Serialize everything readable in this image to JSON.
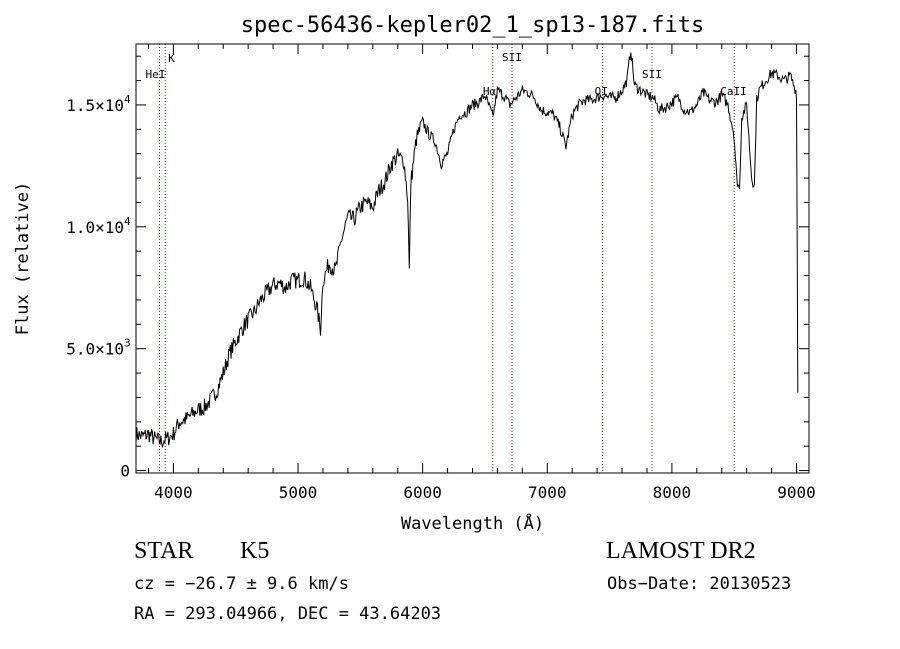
{
  "chart_data": {
    "type": "line",
    "title": "spec-56436-kepler02_1_sp13-187.fits",
    "xlabel": "Wavelength (Å)",
    "ylabel": "Flux (relative)",
    "xlim": [
      3700,
      9100
    ],
    "ylim": [
      -100,
      17500
    ],
    "grid": false,
    "x_ticks": [
      {
        "value": 4000,
        "label": "4000"
      },
      {
        "value": 5000,
        "label": "5000"
      },
      {
        "value": 6000,
        "label": "6000"
      },
      {
        "value": 7000,
        "label": "7000"
      },
      {
        "value": 8000,
        "label": "8000"
      },
      {
        "value": 9000,
        "label": "9000"
      }
    ],
    "y_ticks": [
      {
        "value": 0,
        "mant": "0",
        "exp": ""
      },
      {
        "value": 5000,
        "mant": "5.0×10",
        "exp": "3"
      },
      {
        "value": 10000,
        "mant": "1.0×10",
        "exp": "4"
      },
      {
        "value": 15000,
        "mant": "1.5×10",
        "exp": "4"
      }
    ],
    "lines": [
      {
        "label": "K",
        "wavelength": 3934
      },
      {
        "label": "HeI",
        "wavelength": 3889
      },
      {
        "label": "Hα",
        "wavelength": 6563
      },
      {
        "label": "SII",
        "wavelength": 6717
      },
      {
        "label": "OI",
        "wavelength": 7444
      },
      {
        "label": "SII",
        "wavelength": 7840
      },
      {
        "label": "CaII",
        "wavelength": 8500
      }
    ],
    "series": [
      {
        "x": [
          3700,
          3750,
          3800,
          3850,
          3900,
          3950,
          4000,
          4050,
          4100,
          4150,
          4200,
          4250,
          4300,
          4350,
          4400,
          4450,
          4500,
          4550,
          4600,
          4650,
          4700,
          4750,
          4800,
          4850,
          4900,
          4950,
          5000,
          5050,
          5100,
          5150,
          5180,
          5200,
          5250,
          5300,
          5350,
          5400,
          5450,
          5500,
          5550,
          5600,
          5650,
          5700,
          5750,
          5800,
          5850,
          5880,
          5893,
          5905,
          5950,
          6000,
          6050,
          6100,
          6150,
          6200,
          6250,
          6300,
          6350,
          6400,
          6450,
          6500,
          6563,
          6600,
          6650,
          6700,
          6750,
          6800,
          6850,
          6900,
          6950,
          7000,
          7050,
          7100,
          7150,
          7200,
          7250,
          7300,
          7350,
          7400,
          7450,
          7500,
          7550,
          7600,
          7640,
          7670,
          7700,
          7750,
          7800,
          7850,
          7900,
          7950,
          8000,
          8050,
          8100,
          8150,
          8200,
          8250,
          8300,
          8350,
          8400,
          8450,
          8498,
          8520,
          8542,
          8560,
          8600,
          8640,
          8662,
          8680,
          8700,
          8750,
          8800,
          8850,
          8900,
          8950,
          9000,
          9010
        ],
        "y": [
          1500,
          1400,
          1500,
          1300,
          1200,
          1300,
          1500,
          2000,
          2100,
          2300,
          2500,
          2600,
          2900,
          3300,
          4000,
          4800,
          5300,
          5800,
          6200,
          6500,
          7000,
          7300,
          7600,
          7700,
          7500,
          7800,
          7800,
          7900,
          7500,
          6700,
          5800,
          7800,
          8500,
          8200,
          9500,
          10400,
          10300,
          10800,
          11000,
          10800,
          11500,
          11900,
          12600,
          12900,
          12700,
          11200,
          8200,
          11800,
          13600,
          14300,
          13800,
          13500,
          12600,
          13000,
          14000,
          14600,
          14700,
          15000,
          15100,
          15400,
          14500,
          15600,
          15400,
          15000,
          15300,
          15600,
          15500,
          15300,
          14800,
          14700,
          14600,
          14100,
          13300,
          14600,
          15000,
          15200,
          15200,
          15300,
          15400,
          15300,
          15300,
          15600,
          16000,
          17300,
          15800,
          15600,
          15400,
          15300,
          14800,
          14900,
          15100,
          15300,
          14800,
          14700,
          15000,
          15500,
          15200,
          15100,
          15400,
          15000,
          13800,
          12000,
          11500,
          14500,
          15000,
          12000,
          11700,
          15200,
          15600,
          16000,
          16300,
          16200,
          16000,
          16200,
          15500,
          3200
        ]
      }
    ]
  },
  "info": {
    "object_class": "STAR",
    "subclass": "K5",
    "survey": "LAMOST DR2",
    "cz": "cz = −26.7 ± 9.6 km/s",
    "obs_date": "Obs−Date: 20130523",
    "coords": "RA = 293.04966, DEC =  43.64203"
  }
}
